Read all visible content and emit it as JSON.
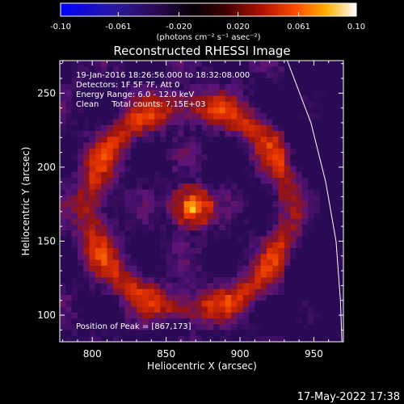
{
  "chart_data": {
    "type": "heatmap",
    "title": "Reconstructed RHESSI Image",
    "xlabel": "Heliocentric X (arcsec)",
    "ylabel": "Heliocentric Y (arcsec)",
    "xlim": [
      778,
      970
    ],
    "ylim": [
      82,
      272
    ],
    "x_ticks": [
      800,
      850,
      900,
      950
    ],
    "y_ticks": [
      100,
      150,
      200,
      250
    ],
    "colorbar": {
      "min": -0.1,
      "max": 0.1,
      "tick_labels": [
        "-0.10",
        "-0.061",
        "-0.020",
        "0.020",
        "0.061",
        "0.10"
      ],
      "tick_values": [
        -0.1,
        -0.061,
        -0.02,
        0.02,
        0.061,
        0.1
      ],
      "units": "(photons cm⁻² s⁻¹ asec⁻²)",
      "colors": [
        "#0000ff",
        "#3a1090",
        "#200040",
        "#000000",
        "#5a0000",
        "#b01000",
        "#ff4000",
        "#ff9000",
        "#ffd000",
        "#ffffff"
      ]
    },
    "annotations": [
      "19-Jan-2016 18:26:56.000 to 18:32:08.000",
      "Detectors: 1F 5F 7F, Att 0",
      "Energy Range: 6.0 - 12.0 keV",
      "Clean     Total counts: 7.15E+03"
    ],
    "peak_label": "Position of Peak = [867,173]",
    "peak": {
      "x": 867,
      "y": 173
    },
    "limb_curve": [
      [
        932,
        272
      ],
      [
        948,
        230
      ],
      [
        958,
        190
      ],
      [
        965,
        150
      ],
      [
        968,
        110
      ],
      [
        969,
        82
      ]
    ]
  },
  "footer": {
    "timestamp": "17-May-2022 17:38"
  }
}
